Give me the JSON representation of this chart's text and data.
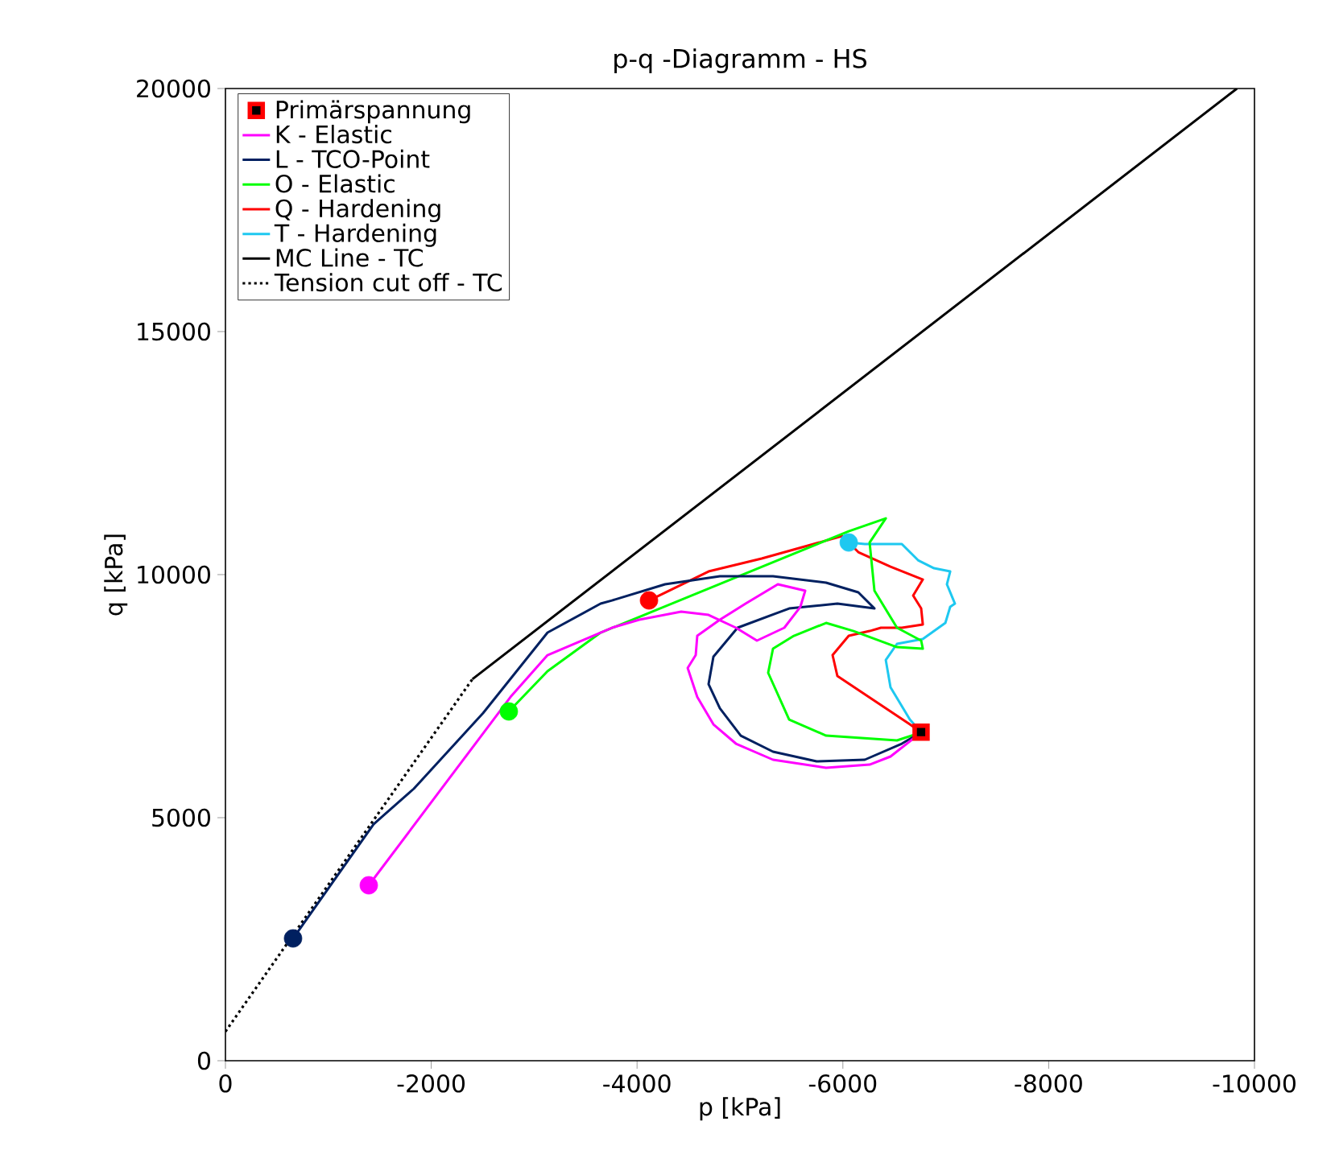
{
  "chart_data": {
    "type": "line",
    "title": "p-q -Diagramm - HS",
    "xlabel": "p [kPa]",
    "ylabel": "q [kPa]",
    "xlim": [
      0,
      -10000
    ],
    "xticks": [
      0,
      -2000,
      -4000,
      -6000,
      -8000,
      -10000
    ],
    "ylim": [
      0,
      20000
    ],
    "yticks": [
      0,
      5000,
      10000,
      15000,
      20000
    ],
    "grid": false,
    "legend": "top left",
    "marker": "none",
    "series": [
      {
        "name": "Primärspannung",
        "type": "scatter",
        "marker": "square",
        "color": "#ff0000",
        "x": [
          -6760
        ],
        "values": [
          6760
        ]
      },
      {
        "name": "K - Elastic",
        "color": "#ff00ff",
        "x": [
          -6761,
          -6463,
          -6260,
          -5837,
          -5321,
          -4961,
          -4742,
          -4585,
          -4492,
          -4570,
          -4585,
          -4805,
          -5055,
          -5368,
          -5634,
          -5587,
          -5431,
          -5165,
          -4961,
          -4695,
          -4429,
          -4022,
          -3756,
          -3130,
          -2770,
          -1393
        ],
        "values": [
          6754,
          6258,
          6092,
          6026,
          6192,
          6523,
          6920,
          7483,
          8079,
          8344,
          8741,
          9072,
          9403,
          9801,
          9668,
          9337,
          8907,
          8642,
          8907,
          9171,
          9238,
          9072,
          8907,
          8344,
          7483,
          3609
        ]
      },
      {
        "name": "L - TCO-Point",
        "color": "#002060",
        "x": [
          -6761,
          -6573,
          -6213,
          -5744,
          -5321,
          -5008,
          -4805,
          -4695,
          -4742,
          -4977,
          -5478,
          -5947,
          -6307,
          -6150,
          -5837,
          -5321,
          -4805,
          -4272,
          -3756,
          -3646,
          -3130,
          -2504,
          -1831,
          -1440,
          -657
        ],
        "values": [
          6754,
          6523,
          6192,
          6158,
          6357,
          6688,
          7251,
          7748,
          8311,
          8907,
          9304,
          9403,
          9304,
          9635,
          9834,
          9966,
          9966,
          9801,
          9469,
          9403,
          8807,
          7152,
          5596,
          4867,
          2516
        ]
      },
      {
        "name": "O - Elastic",
        "color": "#00ff00",
        "x": [
          -6761,
          -6526,
          -5837,
          -5478,
          -5274,
          -5321,
          -5524,
          -5837,
          -6104,
          -6526,
          -6777,
          -6761,
          -6526,
          -6307,
          -6260,
          -6417,
          -6057,
          -4069,
          -3646,
          -3130,
          -2754
        ],
        "values": [
          6754,
          6589,
          6688,
          7019,
          7980,
          8476,
          8741,
          9006,
          8840,
          8509,
          8476,
          8642,
          8907,
          9668,
          10661,
          11158,
          10893,
          9171,
          8807,
          8013,
          7185
        ]
      },
      {
        "name": "Q - Hardening",
        "color": "#ff0000",
        "x": [
          -6761,
          -6651,
          -5947,
          -5900,
          -6057,
          -6260,
          -6370,
          -6573,
          -6777,
          -6761,
          -6683,
          -6777,
          -6463,
          -6150,
          -5994,
          -5211,
          -4695,
          -4116
        ],
        "values": [
          6754,
          6920,
          7913,
          8344,
          8741,
          8840,
          8907,
          8907,
          8973,
          9304,
          9569,
          9900,
          10165,
          10463,
          10794,
          10330,
          10065,
          9469
        ]
      },
      {
        "name": "T - Hardening",
        "color": "#1ec8f0",
        "x": [
          -6761,
          -6651,
          -6463,
          -6417,
          -6526,
          -6777,
          -6996,
          -7043,
          -7089,
          -7011,
          -7043,
          -6886,
          -6730,
          -6573,
          -6213,
          -6057
        ],
        "values": [
          6754,
          7019,
          7682,
          8244,
          8576,
          8675,
          9006,
          9337,
          9403,
          9801,
          10065,
          10131,
          10297,
          10628,
          10628,
          10661
        ]
      },
      {
        "name": "MC Line - TC",
        "color": "#000000",
        "x": [
          -2400,
          -9830
        ],
        "values": [
          7850,
          20000
        ]
      },
      {
        "name": "Tension cut off - TC",
        "line_style": "dotted",
        "color": "#000000",
        "x": [
          0,
          -2400
        ],
        "values": [
          600,
          7850
        ]
      },
      {
        "type": "scatter",
        "marker": "circle",
        "x": [
          -1393,
          -657,
          -2754,
          -4116,
          -6057
        ],
        "values": [
          3609,
          2516,
          7185,
          9469,
          10661
        ],
        "colors": [
          "#ff00ff",
          "#002060",
          "#00ff00",
          "#ff0000",
          "#1ec8f0"
        ]
      }
    ]
  }
}
